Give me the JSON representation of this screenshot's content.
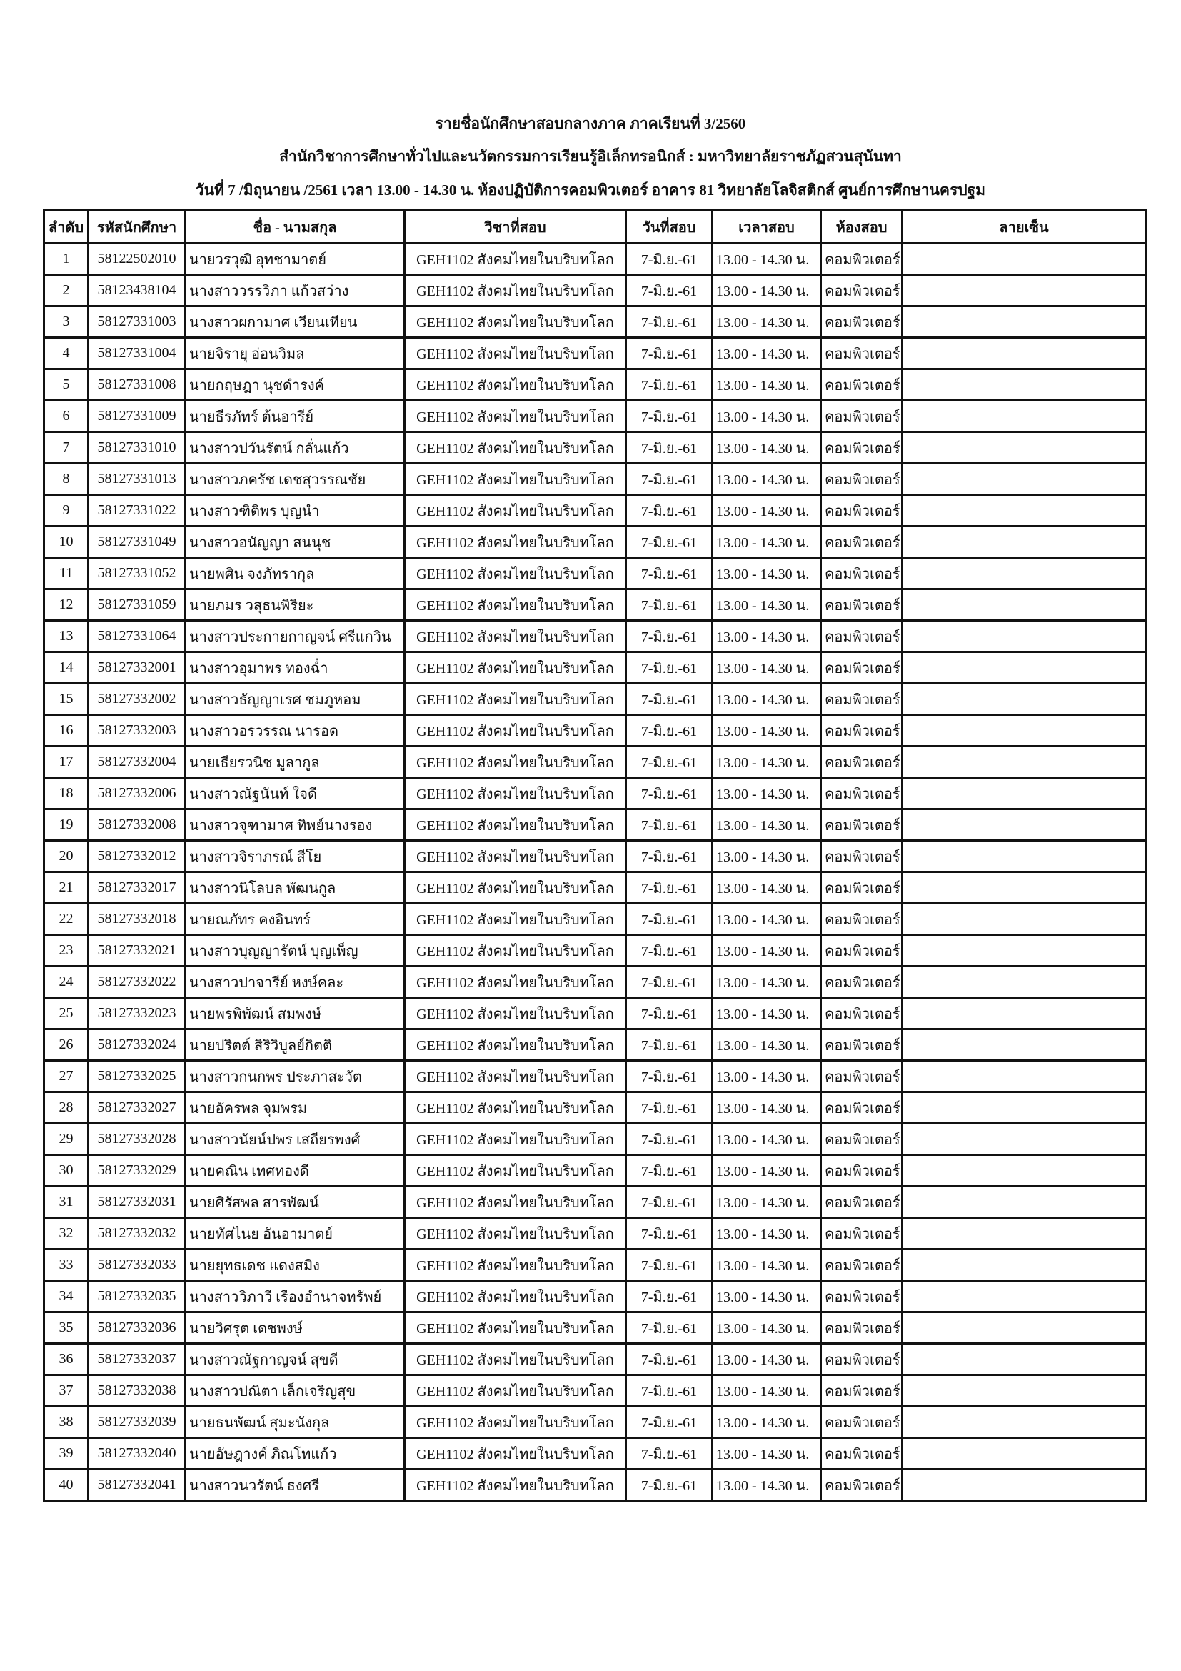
{
  "header": {
    "line1": "รายชื่อนักศึกษาสอบกลางภาค ภาคเรียนที่ 3/2560",
    "line2": "สำนักวิชาการศึกษาทั่วไปและนวัตกรรมการเรียนรู้อิเล็กทรอนิกส์ : มหาวิทยาลัยราชภัฏสวนสุนันทา",
    "line3": "วันที่  7 /มิถุนายน /2561  เวลา  13.00 - 14.30 น. ห้องปฏิบัติการคอมพิวเตอร์ อาคาร 81 วิทยาลัยโลจิสติกส์ ศูนย์การศึกษานครปฐม"
  },
  "columns": [
    "ลำดับ",
    "รหัสนักศึกษา",
    "ชื่อ - นามสกุล",
    "วิชาที่สอบ",
    "วันที่สอบ",
    "เวลาสอบ",
    "ห้องสอบ",
    "ลายเซ็น"
  ],
  "common": {
    "subject": "GEH1102 สังคมไทยในบริบทโลก",
    "date": "7-มิ.ย.-61",
    "time": "13.00 - 14.30 น.",
    "room": "คอมพิวเตอร์"
  },
  "rows": [
    {
      "no": "1",
      "id": "58122502010",
      "name": "นายวรวุฒิ อุทชามาตย์"
    },
    {
      "no": "2",
      "id": "58123438104",
      "name": "นางสาววรรวิภา แก้วสว่าง"
    },
    {
      "no": "3",
      "id": "58127331003",
      "name": "นางสาวผกามาศ เวียนเทียน"
    },
    {
      "no": "4",
      "id": "58127331004",
      "name": "นายจิรายุ อ่อนวิมล"
    },
    {
      "no": "5",
      "id": "58127331008",
      "name": "นายกฤษฎา นุชดำรงค์"
    },
    {
      "no": "6",
      "id": "58127331009",
      "name": "นายธีรภัทร์ ต้นอารีย์"
    },
    {
      "no": "7",
      "id": "58127331010",
      "name": "นางสาวปวันรัตน์ กลั่นแก้ว"
    },
    {
      "no": "8",
      "id": "58127331013",
      "name": "นางสาวภครัช เดชสุวรรณชัย"
    },
    {
      "no": "9",
      "id": "58127331022",
      "name": "นางสาวฑิติพร บุญนำ"
    },
    {
      "no": "10",
      "id": "58127331049",
      "name": "นางสาวอนัญญา สนนุช"
    },
    {
      "no": "11",
      "id": "58127331052",
      "name": "นายพศิน จงภัทรากุล"
    },
    {
      "no": "12",
      "id": "58127331059",
      "name": "นายภมร วสุธนพิริยะ"
    },
    {
      "no": "13",
      "id": "58127331064",
      "name": "นางสาวประกายกาญจน์ ศรีแกวิน"
    },
    {
      "no": "14",
      "id": "58127332001",
      "name": "นางสาวอุมาพร ทองฉ่ำ"
    },
    {
      "no": "15",
      "id": "58127332002",
      "name": "นางสาวธัญญาเรศ ชมภูหอม"
    },
    {
      "no": "16",
      "id": "58127332003",
      "name": "นางสาวอรวรรณ นารอด"
    },
    {
      "no": "17",
      "id": "58127332004",
      "name": "นายเธียรวนิช มูลากูล"
    },
    {
      "no": "18",
      "id": "58127332006",
      "name": "นางสาวณัฐนันท์ ใจดี"
    },
    {
      "no": "19",
      "id": "58127332008",
      "name": "นางสาวจุฑามาศ ทิพย์นางรอง"
    },
    {
      "no": "20",
      "id": "58127332012",
      "name": "นางสาวจิราภรณ์ สีโย"
    },
    {
      "no": "21",
      "id": "58127332017",
      "name": "นางสาวนิโลบล พัฒนกูล"
    },
    {
      "no": "22",
      "id": "58127332018",
      "name": "นายณภัทร คงอินทร์"
    },
    {
      "no": "23",
      "id": "58127332021",
      "name": "นางสาวบุญญารัตน์ บุญเพ็ญ"
    },
    {
      "no": "24",
      "id": "58127332022",
      "name": "นางสาวปาจารีย์ หงษ์คละ"
    },
    {
      "no": "25",
      "id": "58127332023",
      "name": "นายพรพิพัฒน์ สมพงษ์"
    },
    {
      "no": "26",
      "id": "58127332024",
      "name": "นายปริตต์ สิริวิบูลย์กิตติ"
    },
    {
      "no": "27",
      "id": "58127332025",
      "name": "นางสาวกนกพร ประภาสะวัต"
    },
    {
      "no": "28",
      "id": "58127332027",
      "name": "นายอัครพล จุมพรม"
    },
    {
      "no": "29",
      "id": "58127332028",
      "name": "นางสาวนัยน์ปพร เสถียรพงศ์"
    },
    {
      "no": "30",
      "id": "58127332029",
      "name": "นายคณิน เทศทองดี"
    },
    {
      "no": "31",
      "id": "58127332031",
      "name": "นายศิรัสพล สารพัฒน์"
    },
    {
      "no": "32",
      "id": "58127332032",
      "name": "นายทัศไนย อันอามาตย์"
    },
    {
      "no": "33",
      "id": "58127332033",
      "name": "นายยุทธเดช แดงสมิง"
    },
    {
      "no": "34",
      "id": "58127332035",
      "name": "นางสาววิภาวี เรืองอำนาจทรัพย์"
    },
    {
      "no": "35",
      "id": "58127332036",
      "name": "นายวิศรุต เดชพงษ์"
    },
    {
      "no": "36",
      "id": "58127332037",
      "name": "นางสาวณัฐกาญจน์ สุขดี"
    },
    {
      "no": "37",
      "id": "58127332038",
      "name": "นางสาวปณิตา เล็กเจริญสุข"
    },
    {
      "no": "38",
      "id": "58127332039",
      "name": "นายธนพัฒน์ สุมะนังกุล"
    },
    {
      "no": "39",
      "id": "58127332040",
      "name": "นายอัษฎางค์ ภิณโทแก้ว"
    },
    {
      "no": "40",
      "id": "58127332041",
      "name": "นางสาวนวรัตน์ ธงศรี"
    }
  ]
}
